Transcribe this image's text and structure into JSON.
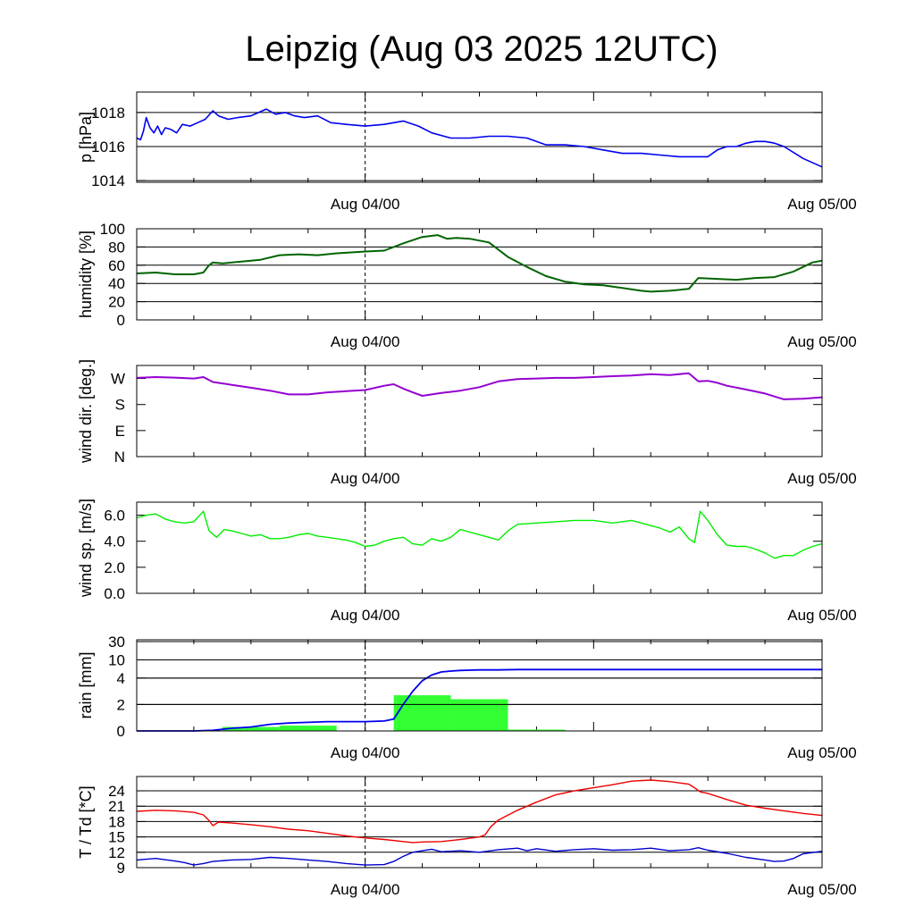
{
  "title": "Leipzig (Aug 03 2025 12UTC)",
  "colors": {
    "pressure": "#0000ee",
    "humidity": "#006400",
    "wind_dir": "#9400d3",
    "wind_speed": "#00ee00",
    "rain_bar": "#33ff33",
    "rain_cum": "#0000ee",
    "temperature": "#ee0000",
    "dewpoint": "#0000cc"
  },
  "chart_data": [
    {
      "type": "line",
      "name": "pressure",
      "ylabel": "p [hPa]",
      "ylim": [
        1013.9,
        1019.2
      ],
      "yticks": [
        1014,
        1016,
        1018
      ],
      "ytick_labels": [
        "1014",
        "1016",
        "1018"
      ],
      "xlim": [
        0,
        36
      ],
      "xticks": [
        12,
        36
      ],
      "xtick_labels": [
        "Aug 04/00",
        "Aug 05/00"
      ],
      "x": [
        0,
        0.2,
        0.35,
        0.5,
        0.7,
        0.9,
        1.1,
        1.3,
        1.5,
        1.8,
        2.1,
        2.4,
        2.8,
        3.2,
        3.6,
        4.0,
        4.3,
        4.8,
        5.3,
        6.0,
        6.8,
        7.3,
        7.8,
        8.3,
        8.8,
        9.5,
        10.2,
        11.0,
        12.0,
        13.0,
        14.0,
        14.8,
        15.5,
        16.5,
        17.5,
        18.5,
        19.5,
        20.5,
        21.5,
        22.5,
        23.5,
        24.5,
        25.5,
        26.5,
        27.5,
        28.5,
        29.5,
        30.0,
        30.5,
        31.0,
        31.5,
        32.0,
        32.5,
        33.0,
        33.5,
        34.0,
        35.0,
        36.0
      ],
      "series": [
        {
          "values": [
            1016.5,
            1016.4,
            1016.9,
            1017.7,
            1017.1,
            1016.8,
            1017.2,
            1016.7,
            1017.1,
            1017.0,
            1016.8,
            1017.3,
            1017.2,
            1017.4,
            1017.6,
            1018.1,
            1017.8,
            1017.6,
            1017.7,
            1017.8,
            1018.2,
            1017.9,
            1018.0,
            1017.8,
            1017.7,
            1017.8,
            1017.4,
            1017.3,
            1017.2,
            1017.3,
            1017.5,
            1017.2,
            1016.8,
            1016.5,
            1016.5,
            1016.6,
            1016.6,
            1016.5,
            1016.1,
            1016.1,
            1016.0,
            1015.8,
            1015.6,
            1015.6,
            1015.5,
            1015.4,
            1015.4,
            1015.4,
            1015.8,
            1016.0,
            1016.0,
            1016.2,
            1016.3,
            1016.3,
            1016.2,
            1016.0,
            1015.3,
            1014.8
          ]
        }
      ]
    },
    {
      "type": "line",
      "name": "humidity",
      "ylabel": "humidity [%]",
      "ylim": [
        0,
        100
      ],
      "yticks": [
        0,
        20,
        40,
        60,
        80,
        100
      ],
      "ytick_labels": [
        "0",
        "20",
        "40",
        "60",
        "80",
        "100"
      ],
      "xlim": [
        0,
        36
      ],
      "xticks": [
        12,
        36
      ],
      "xtick_labels": [
        "Aug 04/00",
        "Aug 05/00"
      ],
      "x": [
        0,
        1,
        2,
        3,
        3.5,
        3.8,
        4.0,
        4.5,
        5.5,
        6.5,
        7.5,
        8.5,
        9.5,
        10.5,
        12.0,
        13.0,
        14.0,
        15.0,
        15.8,
        16.3,
        16.8,
        17.5,
        18.5,
        19.5,
        20.5,
        21.5,
        22.5,
        23.5,
        24.5,
        25.5,
        26.5,
        27.0,
        28.0,
        29.0,
        29.5,
        30.5,
        31.5,
        32.5,
        33.5,
        34.5,
        35.5,
        36.0
      ],
      "series": [
        {
          "values": [
            51,
            52,
            50,
            50,
            52,
            60,
            63,
            62,
            64,
            66,
            71,
            72,
            71,
            73,
            75,
            76,
            84,
            91,
            93,
            89,
            90,
            89,
            85,
            69,
            58,
            48,
            42,
            39,
            38,
            35,
            32,
            31,
            32,
            34,
            46,
            45,
            44,
            46,
            47,
            53,
            63,
            65
          ]
        }
      ]
    },
    {
      "type": "line",
      "name": "wind_direction",
      "ylabel": "wind dir. [deg.]",
      "ylim": [
        0,
        315
      ],
      "yticks": [
        0,
        90,
        180,
        270
      ],
      "ytick_labels": [
        "N",
        "E",
        "S",
        "W"
      ],
      "xlim": [
        0,
        36
      ],
      "xticks": [
        12,
        36
      ],
      "xtick_labels": [
        "Aug 04/00",
        "Aug 05/00"
      ],
      "x": [
        0,
        1,
        2,
        3,
        3.5,
        4.0,
        5.0,
        6.0,
        7.0,
        8.0,
        9.0,
        10.0,
        11.0,
        12.0,
        13.0,
        13.5,
        14.0,
        14.5,
        15.0,
        15.5,
        16.0,
        17.0,
        18.0,
        19.0,
        20.0,
        21.0,
        22.0,
        23.0,
        24.0,
        25.0,
        26.0,
        27.0,
        28.0,
        29.0,
        29.5,
        30.0,
        30.5,
        31.0,
        32.0,
        33.0,
        34.0,
        35.0,
        36.0
      ],
      "series": [
        {
          "values": [
            272,
            275,
            273,
            270,
            275,
            258,
            248,
            238,
            228,
            215,
            215,
            222,
            226,
            230,
            245,
            250,
            235,
            222,
            210,
            215,
            220,
            228,
            240,
            260,
            268,
            270,
            272,
            272,
            275,
            278,
            280,
            285,
            282,
            288,
            260,
            262,
            255,
            245,
            232,
            218,
            198,
            200,
            205
          ]
        }
      ]
    },
    {
      "type": "line",
      "name": "wind_speed",
      "ylabel": "wind sp. [m/s]",
      "ylim": [
        0,
        7
      ],
      "yticks": [
        0,
        2,
        4,
        6
      ],
      "ytick_labels": [
        "0.0",
        "2.0",
        "4.0",
        "6.0"
      ],
      "xlim": [
        0,
        36
      ],
      "xticks": [
        12,
        36
      ],
      "xtick_labels": [
        "Aug 04/00",
        "Aug 05/00"
      ],
      "x": [
        0,
        0.5,
        1.0,
        1.5,
        2.0,
        2.5,
        3.0,
        3.5,
        3.8,
        4.2,
        4.6,
        5.0,
        5.5,
        6.0,
        6.5,
        7.0,
        7.5,
        8.0,
        8.5,
        9.0,
        9.5,
        10.0,
        10.5,
        11.0,
        11.5,
        12.0,
        12.5,
        13.0,
        13.5,
        14.0,
        14.5,
        15.0,
        15.5,
        16.0,
        16.5,
        17.0,
        17.5,
        18.0,
        18.5,
        19.0,
        19.5,
        20.0,
        21.0,
        22.0,
        23.0,
        24.0,
        25.0,
        26.0,
        27.0,
        27.5,
        28.0,
        28.5,
        29.0,
        29.3,
        29.6,
        30.0,
        30.5,
        31.0,
        31.5,
        32.0,
        32.5,
        33.0,
        33.5,
        34.0,
        34.5,
        35.0,
        35.5,
        36.0
      ],
      "series": [
        {
          "values": [
            5.8,
            6.0,
            6.1,
            5.7,
            5.5,
            5.4,
            5.5,
            6.3,
            4.8,
            4.3,
            4.9,
            4.8,
            4.6,
            4.4,
            4.5,
            4.2,
            4.2,
            4.3,
            4.5,
            4.6,
            4.4,
            4.3,
            4.2,
            4.1,
            3.9,
            3.6,
            3.7,
            4.0,
            4.2,
            4.3,
            3.8,
            3.7,
            4.2,
            4.0,
            4.3,
            4.9,
            4.7,
            4.5,
            4.3,
            4.1,
            4.8,
            5.3,
            5.4,
            5.5,
            5.6,
            5.6,
            5.4,
            5.6,
            5.2,
            5.0,
            4.7,
            5.1,
            4.2,
            3.9,
            6.3,
            5.6,
            4.5,
            3.7,
            3.6,
            3.6,
            3.4,
            3.1,
            2.7,
            2.9,
            2.9,
            3.3,
            3.6,
            3.8
          ]
        }
      ]
    },
    {
      "type": "bar",
      "name": "rain",
      "ylabel": "rain [mm]",
      "yscale": "nonlinear",
      "ylim": [
        0,
        30
      ],
      "yticks": [
        0,
        2,
        4,
        10,
        30
      ],
      "ytick_labels": [
        "0",
        "2",
        "4",
        "10",
        "30"
      ],
      "xlim": [
        0,
        36
      ],
      "xticks": [
        12,
        36
      ],
      "xtick_labels": [
        "Aug 04/00",
        "Aug 05/00"
      ],
      "bars": [
        {
          "x0": 4.5,
          "x1": 7.5,
          "value": 0.3
        },
        {
          "x0": 7.5,
          "x1": 10.5,
          "value": 0.4
        },
        {
          "x0": 13.5,
          "x1": 16.5,
          "value": 2.7
        },
        {
          "x0": 16.5,
          "x1": 19.5,
          "value": 2.4
        },
        {
          "x0": 19.5,
          "x1": 22.5,
          "value": 0.1
        }
      ],
      "cumulative": {
        "x": [
          0,
          3.0,
          4.0,
          5.0,
          6.0,
          7.0,
          8.0,
          9.0,
          10.0,
          11.0,
          12.0,
          13.0,
          13.5,
          14.0,
          14.5,
          15.0,
          15.5,
          16.0,
          16.5,
          17.0,
          17.5,
          18.0,
          19.0,
          20.0,
          21.0,
          22.0,
          36.0
        ],
        "values": [
          0,
          0,
          0.05,
          0.2,
          0.3,
          0.5,
          0.6,
          0.65,
          0.7,
          0.7,
          0.7,
          0.75,
          0.9,
          2.0,
          3.0,
          3.8,
          5.0,
          6.0,
          6.3,
          6.5,
          6.6,
          6.7,
          6.7,
          6.8,
          6.8,
          6.8,
          6.8
        ]
      }
    },
    {
      "type": "line",
      "name": "temperature_dewpoint",
      "ylabel": "T / Td [*C]",
      "ylim": [
        9,
        26.8
      ],
      "yticks": [
        9,
        12,
        15,
        18,
        21,
        24
      ],
      "ytick_labels": [
        "9",
        "12",
        "15",
        "18",
        "21",
        "24"
      ],
      "xlim": [
        0,
        36
      ],
      "xticks": [
        12,
        36
      ],
      "xtick_labels": [
        "Aug 04/00",
        "Aug 05/00"
      ],
      "series": [
        {
          "name": "T",
          "x": [
            0,
            1,
            2,
            3,
            3.5,
            3.8,
            4.0,
            4.3,
            5,
            6,
            7,
            8,
            9,
            10,
            11,
            12,
            13,
            14,
            14.5,
            15,
            16,
            17,
            18,
            18.3,
            18.6,
            19,
            20,
            21,
            22,
            23,
            24,
            25,
            26,
            27,
            28,
            29,
            29.3,
            29.6,
            30,
            31,
            32,
            33,
            34,
            35,
            36
          ],
          "values": [
            20.0,
            20.2,
            20.1,
            19.8,
            19.3,
            18.2,
            17.2,
            17.9,
            17.7,
            17.4,
            17.0,
            16.5,
            16.2,
            15.7,
            15.2,
            14.8,
            14.5,
            14.1,
            13.9,
            14.0,
            14.1,
            14.5,
            15.0,
            15.4,
            17.0,
            18.3,
            20.2,
            21.8,
            23.2,
            24.0,
            24.6,
            25.2,
            25.9,
            26.1,
            25.8,
            25.3,
            24.6,
            23.8,
            23.5,
            22.3,
            21.2,
            20.6,
            20.1,
            19.6,
            19.2
          ]
        },
        {
          "name": "Td",
          "x": [
            0,
            1,
            2,
            2.5,
            3,
            3.5,
            4,
            5,
            6,
            7,
            8,
            9,
            10,
            11,
            12,
            13,
            13.5,
            14,
            14.5,
            15,
            15.5,
            16,
            17,
            18,
            19,
            20,
            20.5,
            21,
            22,
            23,
            24,
            25,
            26,
            27,
            28,
            29,
            29.5,
            30,
            31,
            32,
            33,
            33.5,
            34,
            34.5,
            35,
            36
          ],
          "values": [
            10.5,
            10.8,
            10.3,
            10.0,
            9.5,
            9.8,
            10.2,
            10.5,
            10.6,
            11.0,
            10.8,
            10.5,
            10.2,
            9.8,
            9.5,
            9.6,
            10.2,
            11.2,
            12.0,
            12.3,
            12.6,
            12.1,
            12.3,
            12.0,
            12.5,
            12.8,
            12.3,
            12.7,
            12.2,
            12.5,
            12.7,
            12.4,
            12.5,
            12.8,
            12.3,
            12.5,
            12.9,
            12.4,
            11.8,
            11.0,
            10.5,
            10.2,
            10.3,
            10.8,
            11.7,
            12.2
          ]
        }
      ]
    }
  ]
}
